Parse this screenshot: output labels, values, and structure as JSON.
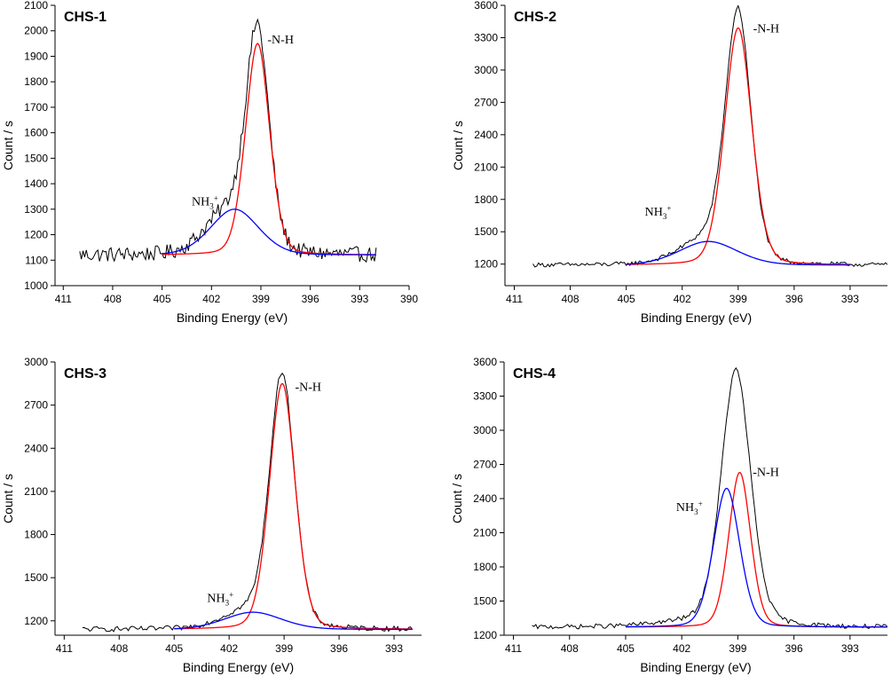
{
  "chart_data": [
    {
      "type": "line",
      "title": "CHS-1",
      "xlabel": "Binding Energy (eV)",
      "ylabel": "Count / s",
      "xlim": [
        411.5,
        390
      ],
      "ylim": [
        1000,
        2100
      ],
      "xticks": [
        411,
        408,
        405,
        402,
        399,
        396,
        393,
        390
      ],
      "yticks": [
        1000,
        1100,
        1200,
        1300,
        1400,
        1500,
        1600,
        1700,
        1800,
        1900,
        2000,
        2100
      ],
      "x_range_measured": [
        410.0,
        392.0
      ],
      "annotations": [
        {
          "text_main": "-N-H",
          "x": 398.6,
          "y": 1950
        },
        {
          "text_main": "NH",
          "text_sub": "3",
          "text_sup": "+",
          "x": 403.2,
          "y": 1315
        }
      ],
      "series": [
        {
          "name": "experimental",
          "color": "#000000",
          "baseline": 1120,
          "peaks": [
            {
              "center": 399.2,
              "height": 840,
              "sigma": 0.72
            },
            {
              "center": 401.0,
              "height": 170,
              "sigma": 1.4
            }
          ],
          "noise": 30
        },
        {
          "name": "-N-H",
          "color": "#ff0000",
          "x_range": [
            405.0,
            392.0
          ],
          "baseline": 1120,
          "peaks": [
            {
              "center": 399.2,
              "height": 830,
              "sigma": 0.75
            }
          ]
        },
        {
          "name": "NH3+",
          "color": "#0000ff",
          "x_range": [
            405.0,
            392.0
          ],
          "baseline": 1120,
          "peaks": [
            {
              "center": 400.6,
              "height": 180,
              "sigma": 1.5
            }
          ]
        }
      ]
    },
    {
      "type": "line",
      "title": "CHS-2",
      "xlabel": "Binding Energy (eV)",
      "ylabel": "Count / s",
      "xlim": [
        411.5,
        391
      ],
      "ylim": [
        1000,
        3600
      ],
      "xticks": [
        411,
        408,
        405,
        402,
        399,
        396,
        393
      ],
      "yticks": [
        1200,
        1500,
        1800,
        2100,
        2400,
        2700,
        3000,
        3300,
        3600
      ],
      "x_range_measured": [
        410.0,
        391.0
      ],
      "annotations": [
        {
          "text_main": "-N-H",
          "x": 398.2,
          "y": 3350
        },
        {
          "text_main": "NH",
          "text_sub": "3",
          "text_sup": "+",
          "x": 404.0,
          "y": 1650
        }
      ],
      "series": [
        {
          "name": "experimental",
          "color": "#000000",
          "baseline": 1190,
          "peaks": [
            {
              "center": 399.0,
              "height": 2260,
              "sigma": 0.7
            },
            {
              "center": 400.6,
              "height": 240,
              "sigma": 1.5
            }
          ],
          "noise": 20
        },
        {
          "name": "-N-H",
          "color": "#ff0000",
          "x_range": [
            405.0,
            393.0
          ],
          "baseline": 1190,
          "peaks": [
            {
              "center": 399.0,
              "height": 2200,
              "sigma": 0.75
            }
          ]
        },
        {
          "name": "NH3+",
          "color": "#0000ff",
          "x_range": [
            405.0,
            393.0
          ],
          "baseline": 1190,
          "peaks": [
            {
              "center": 400.6,
              "height": 220,
              "sigma": 1.6
            }
          ]
        }
      ]
    },
    {
      "type": "line",
      "title": "CHS-3",
      "xlabel": "Binding Energy (eV)",
      "ylabel": "Count / s",
      "xlim": [
        411.5,
        391.5
      ],
      "ylim": [
        1100,
        3000
      ],
      "xticks": [
        411,
        408,
        405,
        402,
        399,
        396,
        393
      ],
      "yticks": [
        1200,
        1500,
        1800,
        2100,
        2400,
        2700,
        3000
      ],
      "x_range_measured": [
        410.0,
        392.0
      ],
      "annotations": [
        {
          "text_main": "-N-H",
          "x": 398.4,
          "y": 2800
        },
        {
          "text_main": "NH",
          "text_sub": "3",
          "text_sup": "+",
          "x": 403.2,
          "y": 1330
        }
      ],
      "series": [
        {
          "name": "experimental",
          "color": "#000000",
          "baseline": 1140,
          "peaks": [
            {
              "center": 399.1,
              "height": 1730,
              "sigma": 0.7
            },
            {
              "center": 400.8,
              "height": 130,
              "sigma": 1.5
            }
          ],
          "noise": 18
        },
        {
          "name": "-N-H",
          "color": "#ff0000",
          "x_range": [
            405.0,
            392.0
          ],
          "baseline": 1140,
          "peaks": [
            {
              "center": 399.1,
              "height": 1710,
              "sigma": 0.72
            }
          ]
        },
        {
          "name": "NH3+",
          "color": "#0000ff",
          "x_range": [
            405.0,
            392.0
          ],
          "baseline": 1140,
          "peaks": [
            {
              "center": 400.7,
              "height": 120,
              "sigma": 1.6
            }
          ]
        }
      ]
    },
    {
      "type": "line",
      "title": "CHS-4",
      "xlabel": "Binding Energy (eV)",
      "ylabel": "Count / s",
      "xlim": [
        411.5,
        391
      ],
      "ylim": [
        1200,
        3600
      ],
      "xticks": [
        411,
        408,
        405,
        402,
        399,
        396,
        393
      ],
      "yticks": [
        1200,
        1500,
        1800,
        2100,
        2400,
        2700,
        3000,
        3300,
        3600
      ],
      "x_range_measured": [
        410.0,
        391.0
      ],
      "annotations": [
        {
          "text_main": "-N-H",
          "x": 398.2,
          "y": 2600
        },
        {
          "text_main": "NH",
          "text_sub": "3",
          "text_sup": "+",
          "x": 402.3,
          "y": 2290
        }
      ],
      "series": [
        {
          "name": "experimental",
          "color": "#000000",
          "baseline": 1270,
          "peaks": [
            {
              "center": 399.1,
              "height": 2210,
              "sigma": 0.8
            },
            {
              "center": 400.2,
              "height": 60,
              "sigma": 2.5
            }
          ],
          "noise": 20
        },
        {
          "name": "-N-H",
          "color": "#ff0000",
          "x_range": [
            405.0,
            391.0
          ],
          "baseline": 1270,
          "peaks": [
            {
              "center": 398.9,
              "height": 1360,
              "sigma": 0.6
            }
          ]
        },
        {
          "name": "NH3+",
          "color": "#0000ff",
          "x_range": [
            405.0,
            391.0
          ],
          "baseline": 1270,
          "peaks": [
            {
              "center": 399.6,
              "height": 1220,
              "sigma": 0.72
            }
          ]
        }
      ]
    }
  ]
}
